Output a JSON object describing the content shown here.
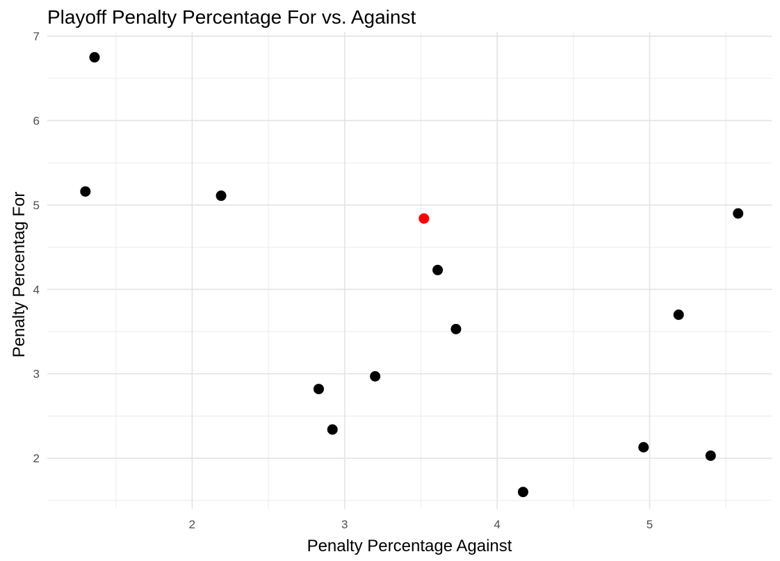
{
  "chart_data": {
    "type": "scatter",
    "title": "Playoff Penalty Percentage For vs. Against",
    "xlabel": "Penalty Percentage Against",
    "ylabel": "Penalty Percentag For",
    "xlim": [
      1.05,
      5.8
    ],
    "ylim": [
      1.4,
      7.05
    ],
    "x_ticks": [
      2,
      3,
      4,
      5
    ],
    "y_ticks": [
      2,
      3,
      4,
      5,
      6,
      7
    ],
    "grid": true,
    "points": [
      {
        "x": 1.36,
        "y": 6.75,
        "color": "#000000"
      },
      {
        "x": 1.3,
        "y": 5.16,
        "color": "#000000"
      },
      {
        "x": 2.19,
        "y": 5.11,
        "color": "#000000"
      },
      {
        "x": 3.52,
        "y": 4.84,
        "color": "#ff0000"
      },
      {
        "x": 3.61,
        "y": 4.23,
        "color": "#000000"
      },
      {
        "x": 3.73,
        "y": 3.53,
        "color": "#000000"
      },
      {
        "x": 3.2,
        "y": 2.97,
        "color": "#000000"
      },
      {
        "x": 2.83,
        "y": 2.82,
        "color": "#000000"
      },
      {
        "x": 2.92,
        "y": 2.34,
        "color": "#000000"
      },
      {
        "x": 4.17,
        "y": 1.6,
        "color": "#000000"
      },
      {
        "x": 4.96,
        "y": 2.13,
        "color": "#000000"
      },
      {
        "x": 5.4,
        "y": 2.03,
        "color": "#000000"
      },
      {
        "x": 5.19,
        "y": 3.7,
        "color": "#000000"
      },
      {
        "x": 5.58,
        "y": 4.9,
        "color": "#000000"
      }
    ]
  }
}
